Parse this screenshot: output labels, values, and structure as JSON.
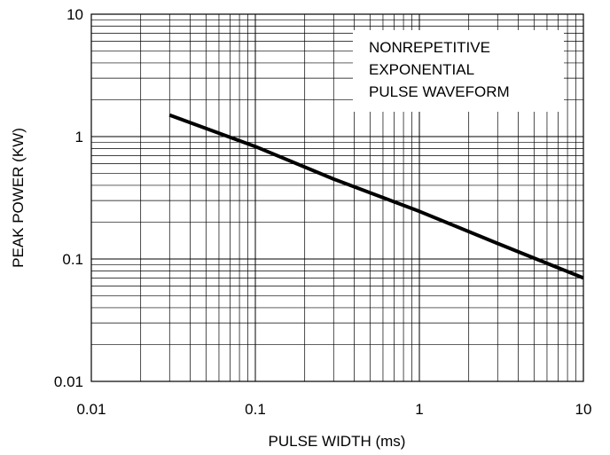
{
  "chart_data": {
    "type": "line",
    "xlabel": "PULSE WIDTH (ms)",
    "ylabel": "PEAK POWER (KW)",
    "x_scale": "log",
    "y_scale": "log",
    "xlim": [
      0.01,
      10
    ],
    "ylim": [
      0.01,
      10
    ],
    "x_ticks": [
      "0.01",
      "0.1",
      "1",
      "10"
    ],
    "y_ticks": [
      "10",
      "1",
      "0.1",
      "0.01"
    ],
    "grid": true,
    "annotation": [
      "NONREPETITIVE",
      "EXPONENTIAL",
      "PULSE WAVEFORM"
    ],
    "series": [
      {
        "x": [
          0.03,
          0.1,
          0.3,
          1,
          3,
          10
        ],
        "y": [
          1.5,
          0.83,
          0.45,
          0.245,
          0.134,
          0.07
        ]
      }
    ],
    "colors": {
      "line": "#000000",
      "grid": "#000000",
      "background": "#ffffff"
    }
  }
}
